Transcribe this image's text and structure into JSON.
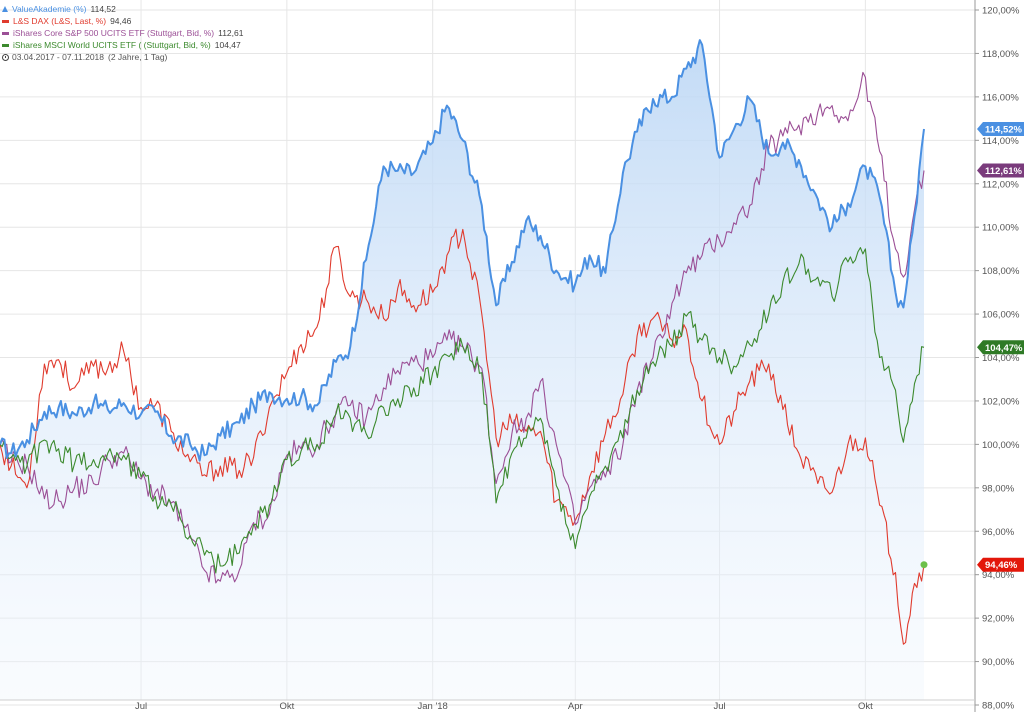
{
  "legend": {
    "items": [
      {
        "name": "ValueAkademie (%)",
        "value": "114,52",
        "color": "#4a90e2",
        "marker": "area"
      },
      {
        "name": "L&S DAX (L&S, Last, %)",
        "value": "94,46",
        "color": "#e03b2e",
        "marker": "line"
      },
      {
        "name": "iShares Core S&P 500 UCITS ETF (Stuttgart, Bid, %)",
        "value": "112,61",
        "color": "#9b4f96",
        "marker": "line"
      },
      {
        "name": "iShares MSCI World UCITS ETF ( (Stuttgart, Bid, %)",
        "value": "104,47",
        "color": "#3c8a2e",
        "marker": "line"
      }
    ],
    "range": "03.04.2017 - 07.11.2018",
    "range_note": "(2 Jahre, 1 Tag)"
  },
  "chart_data": {
    "type": "line",
    "x_start": "2017-04-03",
    "x_end": "2018-11-07",
    "xticks": [
      {
        "date": "2017-07-01",
        "label": "Jul"
      },
      {
        "date": "2017-10-01",
        "label": "Okt"
      },
      {
        "date": "2018-01-01",
        "label": "Jan '18"
      },
      {
        "date": "2018-04-01",
        "label": "Apr"
      },
      {
        "date": "2018-07-01",
        "label": "Jul"
      },
      {
        "date": "2018-10-01",
        "label": "Okt"
      }
    ],
    "ylim": [
      88,
      120
    ],
    "yticks": [
      88,
      90,
      92,
      94,
      96,
      98,
      100,
      102,
      104,
      106,
      108,
      110,
      112,
      114,
      116,
      118,
      120
    ],
    "ytick_labels": [
      "88,00%",
      "90,00%",
      "92,00%",
      "94,00%",
      "96,00%",
      "98,00%",
      "100,00%",
      "102,00%",
      "104,00%",
      "106,00%",
      "108,00%",
      "110,00%",
      "112,00%",
      "114,00%",
      "116,00%",
      "118,00%",
      "120,00%"
    ],
    "grid": true,
    "legend_position": "top-left",
    "series": [
      {
        "name": "ValueAkademie (%)",
        "color": "#4a90e2",
        "style": "area",
        "last_label": "114,52%",
        "points": [
          [
            "2017-04-03",
            100.0
          ],
          [
            "2017-04-10",
            99.6
          ],
          [
            "2017-04-20",
            100.2
          ],
          [
            "2017-05-01",
            101.5
          ],
          [
            "2017-05-10",
            101.7
          ],
          [
            "2017-05-20",
            101.4
          ],
          [
            "2017-06-01",
            101.9
          ],
          [
            "2017-06-10",
            101.6
          ],
          [
            "2017-06-20",
            101.9
          ],
          [
            "2017-07-01",
            101.4
          ],
          [
            "2017-07-10",
            101.5
          ],
          [
            "2017-07-20",
            100.4
          ],
          [
            "2017-08-01",
            100.0
          ],
          [
            "2017-08-10",
            99.5
          ],
          [
            "2017-08-20",
            100.4
          ],
          [
            "2017-09-01",
            101.0
          ],
          [
            "2017-09-10",
            101.8
          ],
          [
            "2017-09-20",
            102.4
          ],
          [
            "2017-10-01",
            102.1
          ],
          [
            "2017-10-10",
            102.2
          ],
          [
            "2017-10-20",
            101.8
          ],
          [
            "2017-11-01",
            103.8
          ],
          [
            "2017-11-10",
            104.5
          ],
          [
            "2017-11-20",
            108.5
          ],
          [
            "2017-12-01",
            112.8
          ],
          [
            "2017-12-10",
            112.6
          ],
          [
            "2017-12-20",
            112.5
          ],
          [
            "2018-01-01",
            113.9
          ],
          [
            "2018-01-10",
            115.6
          ],
          [
            "2018-01-20",
            114.0
          ],
          [
            "2018-02-01",
            111.0
          ],
          [
            "2018-02-10",
            106.4
          ],
          [
            "2018-02-20",
            108.4
          ],
          [
            "2018-03-01",
            110.3
          ],
          [
            "2018-03-10",
            109.6
          ],
          [
            "2018-03-20",
            108.0
          ],
          [
            "2018-04-01",
            107.4
          ],
          [
            "2018-04-10",
            108.7
          ],
          [
            "2018-04-20",
            107.9
          ],
          [
            "2018-05-01",
            112.5
          ],
          [
            "2018-05-10",
            114.4
          ],
          [
            "2018-05-20",
            115.9
          ],
          [
            "2018-06-01",
            116.0
          ],
          [
            "2018-06-10",
            117.3
          ],
          [
            "2018-06-20",
            118.4
          ],
          [
            "2018-07-01",
            113.2
          ],
          [
            "2018-07-10",
            114.5
          ],
          [
            "2018-07-20",
            115.9
          ],
          [
            "2018-08-01",
            113.4
          ],
          [
            "2018-08-10",
            113.9
          ],
          [
            "2018-08-20",
            113.1
          ],
          [
            "2018-09-01",
            111.3
          ],
          [
            "2018-09-10",
            110.0
          ],
          [
            "2018-09-20",
            111.1
          ],
          [
            "2018-10-01",
            112.8
          ],
          [
            "2018-10-10",
            111.4
          ],
          [
            "2018-10-20",
            107.0
          ],
          [
            "2018-10-25",
            106.3
          ],
          [
            "2018-11-01",
            110.5
          ],
          [
            "2018-11-07",
            114.52
          ]
        ]
      },
      {
        "name": "L&S DAX (L&S, Last, %)",
        "color": "#e03b2e",
        "style": "line",
        "last_label": "94,46%",
        "points": [
          [
            "2017-04-03",
            100.0
          ],
          [
            "2017-04-10",
            99.0
          ],
          [
            "2017-04-20",
            98.0
          ],
          [
            "2017-05-01",
            103.7
          ],
          [
            "2017-05-10",
            103.9
          ],
          [
            "2017-05-20",
            102.6
          ],
          [
            "2017-06-01",
            103.6
          ],
          [
            "2017-06-10",
            103.5
          ],
          [
            "2017-06-20",
            104.3
          ],
          [
            "2017-07-01",
            101.7
          ],
          [
            "2017-07-10",
            101.8
          ],
          [
            "2017-07-20",
            100.6
          ],
          [
            "2017-08-01",
            99.2
          ],
          [
            "2017-08-10",
            98.6
          ],
          [
            "2017-08-20",
            99.0
          ],
          [
            "2017-09-01",
            98.8
          ],
          [
            "2017-09-10",
            99.4
          ],
          [
            "2017-09-20",
            101.7
          ],
          [
            "2017-10-01",
            103.3
          ],
          [
            "2017-10-10",
            104.6
          ],
          [
            "2017-10-20",
            105.4
          ],
          [
            "2017-11-01",
            109.1
          ],
          [
            "2017-11-10",
            106.8
          ],
          [
            "2017-11-20",
            106.7
          ],
          [
            "2017-12-01",
            105.8
          ],
          [
            "2017-12-10",
            107.2
          ],
          [
            "2017-12-20",
            106.4
          ],
          [
            "2018-01-01",
            107.0
          ],
          [
            "2018-01-10",
            108.7
          ],
          [
            "2018-01-20",
            109.9
          ],
          [
            "2018-02-01",
            106.0
          ],
          [
            "2018-02-10",
            100.3
          ],
          [
            "2018-02-20",
            101.0
          ],
          [
            "2018-03-01",
            100.6
          ],
          [
            "2018-03-10",
            100.6
          ],
          [
            "2018-03-20",
            97.4
          ],
          [
            "2018-04-01",
            96.5
          ],
          [
            "2018-04-10",
            98.5
          ],
          [
            "2018-04-20",
            100.5
          ],
          [
            "2018-05-01",
            102.3
          ],
          [
            "2018-05-10",
            105.0
          ],
          [
            "2018-05-20",
            105.8
          ],
          [
            "2018-06-01",
            104.8
          ],
          [
            "2018-06-10",
            105.3
          ],
          [
            "2018-06-20",
            102.0
          ],
          [
            "2018-07-01",
            100.0
          ],
          [
            "2018-07-10",
            101.5
          ],
          [
            "2018-07-20",
            102.9
          ],
          [
            "2018-08-01",
            103.7
          ],
          [
            "2018-08-10",
            101.6
          ],
          [
            "2018-08-20",
            99.6
          ],
          [
            "2018-09-01",
            98.2
          ],
          [
            "2018-09-10",
            97.8
          ],
          [
            "2018-09-20",
            100.0
          ],
          [
            "2018-10-01",
            100.3
          ],
          [
            "2018-10-10",
            97.2
          ],
          [
            "2018-10-20",
            94.1
          ],
          [
            "2018-10-25",
            90.8
          ],
          [
            "2018-11-01",
            93.6
          ],
          [
            "2018-11-07",
            94.46
          ]
        ]
      },
      {
        "name": "iShares Core S&P 500 UCITS ETF (Stuttgart, Bid, %)",
        "color": "#9b4f96",
        "style": "line",
        "last_label": "112,61%",
        "points": [
          [
            "2017-04-03",
            100.0
          ],
          [
            "2017-04-10",
            99.2
          ],
          [
            "2017-04-20",
            99.1
          ],
          [
            "2017-05-01",
            97.5
          ],
          [
            "2017-05-10",
            97.4
          ],
          [
            "2017-05-20",
            98.0
          ],
          [
            "2017-06-01",
            98.2
          ],
          [
            "2017-06-10",
            99.3
          ],
          [
            "2017-06-20",
            99.6
          ],
          [
            "2017-07-01",
            98.4
          ],
          [
            "2017-07-10",
            97.8
          ],
          [
            "2017-07-20",
            97.3
          ],
          [
            "2017-08-01",
            95.7
          ],
          [
            "2017-08-10",
            94.2
          ],
          [
            "2017-08-20",
            93.7
          ],
          [
            "2017-09-01",
            94.2
          ],
          [
            "2017-09-10",
            96.4
          ],
          [
            "2017-09-20",
            96.8
          ],
          [
            "2017-10-01",
            99.5
          ],
          [
            "2017-10-10",
            99.8
          ],
          [
            "2017-10-20",
            100.0
          ],
          [
            "2017-11-01",
            101.5
          ],
          [
            "2017-11-10",
            101.8
          ],
          [
            "2017-11-20",
            101.2
          ],
          [
            "2017-12-01",
            102.6
          ],
          [
            "2017-12-10",
            103.4
          ],
          [
            "2017-12-20",
            103.8
          ],
          [
            "2018-01-01",
            104.0
          ],
          [
            "2018-01-10",
            104.8
          ],
          [
            "2018-01-20",
            104.5
          ],
          [
            "2018-02-01",
            103.5
          ],
          [
            "2018-02-10",
            98.2
          ],
          [
            "2018-02-20",
            100.5
          ],
          [
            "2018-03-01",
            101.2
          ],
          [
            "2018-03-10",
            102.9
          ],
          [
            "2018-03-20",
            100.0
          ],
          [
            "2018-04-01",
            96.3
          ],
          [
            "2018-04-10",
            98.0
          ],
          [
            "2018-04-20",
            98.5
          ],
          [
            "2018-05-01",
            100.0
          ],
          [
            "2018-05-10",
            102.5
          ],
          [
            "2018-05-20",
            104.0
          ],
          [
            "2018-06-01",
            106.5
          ],
          [
            "2018-06-10",
            107.9
          ],
          [
            "2018-06-20",
            108.7
          ],
          [
            "2018-07-01",
            109.4
          ],
          [
            "2018-07-10",
            110.2
          ],
          [
            "2018-07-20",
            111.0
          ],
          [
            "2018-08-01",
            113.6
          ],
          [
            "2018-08-10",
            114.2
          ],
          [
            "2018-08-20",
            114.7
          ],
          [
            "2018-09-01",
            115.3
          ],
          [
            "2018-09-10",
            115.6
          ],
          [
            "2018-09-20",
            114.9
          ],
          [
            "2018-10-01",
            116.9
          ],
          [
            "2018-10-10",
            113.5
          ],
          [
            "2018-10-20",
            109.0
          ],
          [
            "2018-10-25",
            107.7
          ],
          [
            "2018-11-01",
            110.8
          ],
          [
            "2018-11-07",
            112.61
          ]
        ]
      },
      {
        "name": "iShares MSCI World UCITS ETF ( (Stuttgart, Bid, %)",
        "color": "#3c8a2e",
        "style": "line",
        "last_label": "104,47%",
        "points": [
          [
            "2017-04-03",
            100.0
          ],
          [
            "2017-04-10",
            99.4
          ],
          [
            "2017-04-20",
            99.0
          ],
          [
            "2017-05-01",
            100.2
          ],
          [
            "2017-05-10",
            99.8
          ],
          [
            "2017-05-20",
            99.1
          ],
          [
            "2017-06-01",
            99.3
          ],
          [
            "2017-06-10",
            99.6
          ],
          [
            "2017-06-20",
            99.5
          ],
          [
            "2017-07-01",
            98.5
          ],
          [
            "2017-07-10",
            97.6
          ],
          [
            "2017-07-20",
            97.2
          ],
          [
            "2017-08-01",
            95.8
          ],
          [
            "2017-08-10",
            94.9
          ],
          [
            "2017-08-20",
            94.4
          ],
          [
            "2017-09-01",
            95.0
          ],
          [
            "2017-09-10",
            96.3
          ],
          [
            "2017-09-20",
            97.2
          ],
          [
            "2017-10-01",
            99.3
          ],
          [
            "2017-10-10",
            99.7
          ],
          [
            "2017-10-20",
            100.0
          ],
          [
            "2017-11-01",
            101.4
          ],
          [
            "2017-11-10",
            101.2
          ],
          [
            "2017-11-20",
            100.5
          ],
          [
            "2017-12-01",
            101.7
          ],
          [
            "2017-12-10",
            102.1
          ],
          [
            "2017-12-20",
            102.6
          ],
          [
            "2018-01-01",
            103.3
          ],
          [
            "2018-01-10",
            104.1
          ],
          [
            "2018-01-20",
            104.5
          ],
          [
            "2018-02-01",
            103.3
          ],
          [
            "2018-02-10",
            97.3
          ],
          [
            "2018-02-20",
            99.6
          ],
          [
            "2018-03-01",
            100.3
          ],
          [
            "2018-03-10",
            101.2
          ],
          [
            "2018-03-20",
            98.1
          ],
          [
            "2018-04-01",
            95.2
          ],
          [
            "2018-04-10",
            97.6
          ],
          [
            "2018-04-20",
            99.0
          ],
          [
            "2018-05-01",
            100.3
          ],
          [
            "2018-05-10",
            102.5
          ],
          [
            "2018-05-20",
            103.8
          ],
          [
            "2018-06-01",
            104.5
          ],
          [
            "2018-06-10",
            105.9
          ],
          [
            "2018-06-20",
            104.8
          ],
          [
            "2018-07-01",
            104.0
          ],
          [
            "2018-07-10",
            103.6
          ],
          [
            "2018-07-20",
            104.6
          ],
          [
            "2018-08-01",
            106.0
          ],
          [
            "2018-08-10",
            107.5
          ],
          [
            "2018-08-20",
            108.3
          ],
          [
            "2018-09-01",
            107.7
          ],
          [
            "2018-09-10",
            106.8
          ],
          [
            "2018-09-20",
            108.4
          ],
          [
            "2018-10-01",
            109.0
          ],
          [
            "2018-10-10",
            104.0
          ],
          [
            "2018-10-20",
            102.5
          ],
          [
            "2018-10-25",
            100.1
          ],
          [
            "2018-11-01",
            102.8
          ],
          [
            "2018-11-07",
            104.47
          ]
        ]
      }
    ]
  }
}
